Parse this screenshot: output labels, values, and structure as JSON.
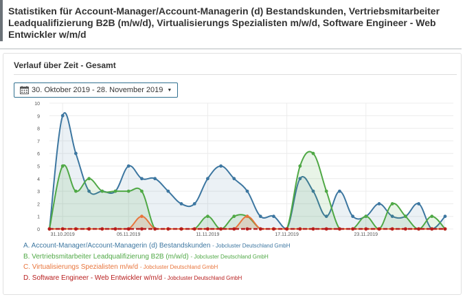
{
  "page": {
    "title": "Statistiken für Account-Manager/Account-Managerin (d) Bestandskunden, Vertriebsmitarbeiter Leadqualifizierung B2B (m/w/d), Virtualisierungs Spezialisten m/w/d, Software Engineer - Web Entwickler w/m/d"
  },
  "panel": {
    "title": "Verlauf über Zeit - Gesamt",
    "date_range": "30. Oktober 2019 - 28. November 2019",
    "calendar_icon": "calendar-icon",
    "caret_icon": "caret-down-icon"
  },
  "chart_data": {
    "type": "area",
    "ylim": [
      0,
      10
    ],
    "y_ticks": [
      "0",
      "1",
      "2",
      "3",
      "4",
      "5",
      "6",
      "7",
      "8",
      "9",
      "10"
    ],
    "x_tick_labels": [
      "31.10.2019",
      "05.11.2019",
      "11.11.2019",
      "17.11.2019",
      "23.11.2019"
    ],
    "x_tick_indices": [
      1,
      6,
      12,
      18,
      24
    ],
    "grid": true,
    "legend_position": "bottom-left",
    "series": [
      {
        "name": "A. Account-Manager/Account-Managerin (d) Bestandskunden",
        "source": "Jobcluster Deutschland GmbH",
        "color": "#3c76a0",
        "values": [
          0,
          9,
          6,
          3,
          3,
          3,
          5,
          4,
          4,
          3,
          2,
          2,
          4,
          5,
          4,
          3,
          1,
          1,
          0,
          4,
          3,
          1,
          3,
          1,
          1,
          2,
          1,
          1,
          2,
          0,
          1
        ]
      },
      {
        "name": "B. Vertriebsmitarbeiter Leadqualifizierung B2B (m/w/d)",
        "source": "Jobcluster Deutschland GmbH",
        "color": "#4fa845",
        "values": [
          0,
          5,
          3,
          4,
          3,
          3,
          3,
          3,
          0,
          0,
          0,
          0,
          1,
          0,
          1,
          1,
          0,
          0,
          0,
          5,
          6,
          3,
          0,
          0,
          1,
          0,
          2,
          1,
          0,
          1,
          0
        ]
      },
      {
        "name": "C. Virtualisierungs Spezialisten m/w/d",
        "source": "Jobcluster Deutschland GmbH",
        "color": "#e8743b",
        "values": [
          0,
          0,
          0,
          0,
          0,
          0,
          0,
          1,
          0,
          0,
          0,
          0,
          0,
          0,
          0,
          1,
          0,
          0,
          0,
          0,
          0,
          0,
          0,
          0,
          0,
          0,
          0,
          0,
          0,
          0,
          0
        ]
      },
      {
        "name": "D. Software Engineer - Web Entwickler w/m/d",
        "source": "Jobcluster Deutschland GmbH",
        "color": "#b71c1c",
        "values": [
          0,
          0,
          0,
          0,
          0,
          0,
          0,
          0,
          0,
          0,
          0,
          0,
          0,
          0,
          0,
          0,
          0,
          0,
          0,
          0,
          0,
          0,
          0,
          0,
          0,
          0,
          0,
          0,
          0,
          0,
          0
        ]
      }
    ]
  }
}
